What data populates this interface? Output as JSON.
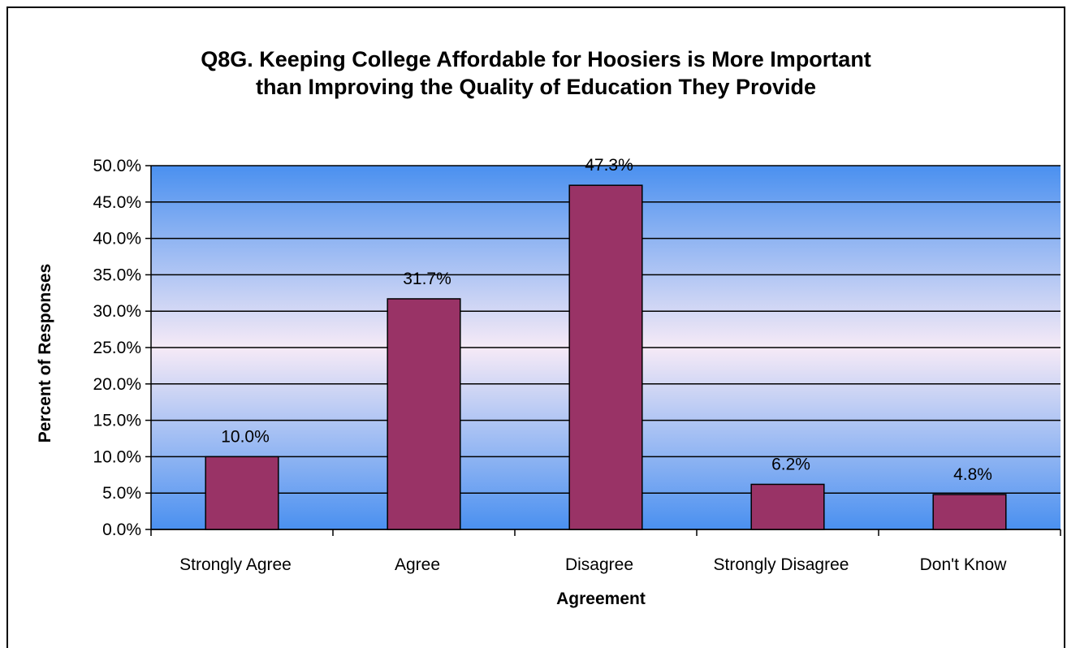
{
  "chart_data": {
    "type": "bar",
    "title_line1": "Q8G. Keeping College Affordable for Hoosiers is More Important",
    "title_line2": "than Improving the Quality of Education They Provide",
    "xlabel": "Agreement",
    "ylabel": "Percent of Responses",
    "ylim": [
      0,
      50
    ],
    "y_ticks": [
      "0.0%",
      "5.0%",
      "10.0%",
      "15.0%",
      "20.0%",
      "25.0%",
      "30.0%",
      "35.0%",
      "40.0%",
      "45.0%",
      "50.0%"
    ],
    "categories": [
      "Strongly Agree",
      "Agree",
      "Disagree",
      "Strongly Disagree",
      "Don't Know"
    ],
    "values": [
      10.0,
      31.7,
      47.3,
      6.2,
      4.8
    ],
    "data_labels": [
      "10.0%",
      "31.7%",
      "47.3%",
      "6.2%",
      "4.8%"
    ],
    "grid": true,
    "legend": "none",
    "colors": {
      "bar": "#993366",
      "plot_top": "#4a90f0",
      "plot_mid": "#f6eaf6",
      "plot_bottom": "#4a90f0"
    }
  }
}
